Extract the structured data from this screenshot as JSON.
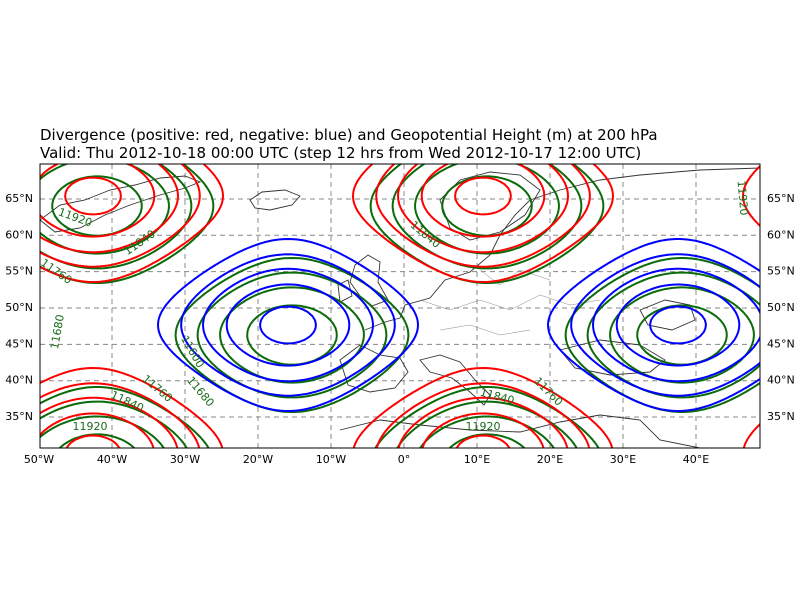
{
  "map": {
    "title": [
      "Divergence (positive: red, negative: blue) and Geopotential Height (m) at 200 hPa",
      "Valid: Thu 2012-10-18 00:00 UTC (step 12 hrs from Wed 2012-10-17 12:00 UTC)"
    ],
    "lon_ticks": [
      {
        "value": -50,
        "label": "50°W"
      },
      {
        "value": -40,
        "label": "40°W"
      },
      {
        "value": -30,
        "label": "30°W"
      },
      {
        "value": -20,
        "label": "20°W"
      },
      {
        "value": -10,
        "label": "10°W"
      },
      {
        "value": 0,
        "label": "0°"
      },
      {
        "value": 10,
        "label": "10°E"
      },
      {
        "value": 20,
        "label": "20°E"
      },
      {
        "value": 30,
        "label": "30°E"
      },
      {
        "value": 40,
        "label": "40°E"
      }
    ],
    "lat_ticks": [
      {
        "value": 65,
        "label": "65°N"
      },
      {
        "value": 60,
        "label": "60°N"
      },
      {
        "value": 55,
        "label": "55°N"
      },
      {
        "value": 50,
        "label": "50°N"
      },
      {
        "value": 45,
        "label": "45°N"
      },
      {
        "value": 40,
        "label": "40°N"
      },
      {
        "value": 35,
        "label": "35°N"
      }
    ],
    "contour_labels": [
      "11920",
      "11840",
      "11760",
      "11680",
      "11600",
      "11760",
      "11920",
      "11840",
      "11680",
      "11920",
      "11840",
      "11840",
      "11760",
      "11920"
    ]
  }
}
